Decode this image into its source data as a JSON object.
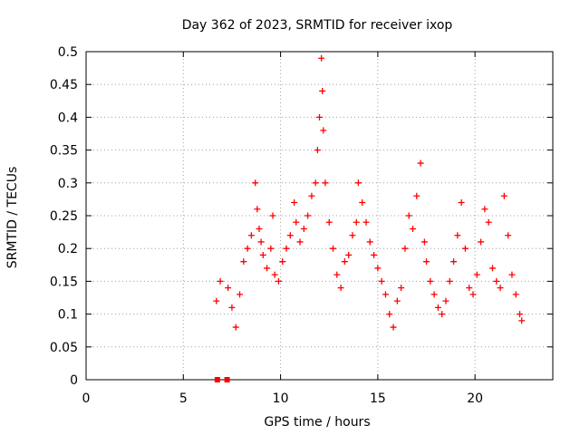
{
  "chart_data": {
    "type": "scatter",
    "title": "Day 362 of 2023, SRMTID for receiver ixop",
    "xlabel": "GPS time / hours",
    "ylabel": "SRMTID / TECUs",
    "xlim": [
      0,
      24
    ],
    "ylim": [
      0,
      0.5
    ],
    "x_ticks": [
      0,
      5,
      10,
      15,
      20
    ],
    "y_ticks": [
      0,
      0.05,
      0.1,
      0.15,
      0.2,
      0.25,
      0.3,
      0.35,
      0.4,
      0.45,
      0.5
    ],
    "x_tick_labels": [
      "0",
      "5",
      "10",
      "15",
      "20"
    ],
    "y_tick_labels": [
      "0",
      "0.05",
      "0.1",
      "0.15",
      "0.2",
      "0.25",
      "0.3",
      "0.35",
      "0.4",
      "0.45",
      "0.5"
    ],
    "grid": true,
    "marker": "plus",
    "series": [
      {
        "color": "#ff0000",
        "x": [
          6.7,
          6.9,
          7.3,
          7.5,
          7.7,
          7.9,
          8.1,
          8.3,
          8.5,
          8.7,
          8.8,
          8.9,
          9.0,
          9.1,
          9.3,
          9.5,
          9.6,
          9.7,
          9.9,
          10.1,
          10.3,
          10.5,
          10.7,
          10.8,
          11.0,
          11.2,
          11.4,
          11.6,
          11.8,
          11.9,
          12.0,
          12.1,
          12.15,
          12.2,
          12.3,
          12.5,
          12.7,
          12.9,
          13.1,
          13.3,
          13.5,
          13.7,
          13.9,
          14.0,
          14.2,
          14.4,
          14.6,
          14.8,
          15.0,
          15.2,
          15.4,
          15.6,
          15.8,
          16.0,
          16.2,
          16.4,
          16.6,
          16.8,
          17.0,
          17.2,
          17.4,
          17.5,
          17.7,
          17.9,
          18.1,
          18.3,
          18.5,
          18.7,
          18.9,
          19.1,
          19.3,
          19.5,
          19.7,
          19.9,
          20.1,
          20.3,
          20.5,
          20.7,
          20.9,
          21.1,
          21.3,
          21.5,
          21.7,
          21.9,
          22.1,
          22.3,
          22.4
        ],
        "y": [
          0.12,
          0.15,
          0.14,
          0.11,
          0.08,
          0.13,
          0.18,
          0.2,
          0.22,
          0.3,
          0.26,
          0.23,
          0.21,
          0.19,
          0.17,
          0.2,
          0.25,
          0.16,
          0.15,
          0.18,
          0.2,
          0.22,
          0.27,
          0.24,
          0.21,
          0.23,
          0.25,
          0.28,
          0.3,
          0.35,
          0.4,
          0.49,
          0.44,
          0.38,
          0.3,
          0.24,
          0.2,
          0.16,
          0.14,
          0.18,
          0.19,
          0.22,
          0.24,
          0.3,
          0.27,
          0.24,
          0.21,
          0.19,
          0.17,
          0.15,
          0.13,
          0.1,
          0.08,
          0.12,
          0.14,
          0.2,
          0.25,
          0.23,
          0.28,
          0.33,
          0.21,
          0.18,
          0.15,
          0.13,
          0.11,
          0.1,
          0.12,
          0.15,
          0.18,
          0.22,
          0.27,
          0.2,
          0.14,
          0.13,
          0.16,
          0.21,
          0.26,
          0.24,
          0.17,
          0.15,
          0.14,
          0.28,
          0.22,
          0.16,
          0.13,
          0.1,
          0.09
        ]
      },
      {
        "color": "#ff0000",
        "x": [
          6.75,
          7.25
        ],
        "y": [
          0,
          0
        ]
      }
    ]
  }
}
